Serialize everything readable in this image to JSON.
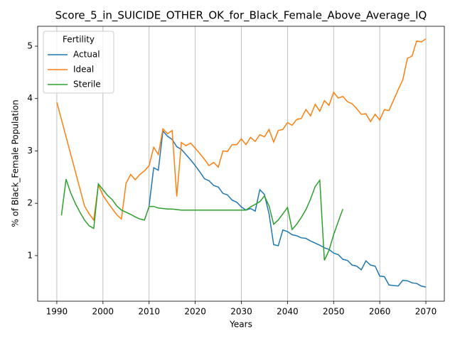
{
  "chart_data": {
    "type": "line",
    "title": "Score_5_in_SUICIDE_OTHER_OK_for_Black_Female_Above_Average_IQ",
    "x_label": "Years",
    "y_label": "% of Black_Female Population",
    "legend_title": "Fertility",
    "legend": "upper left",
    "grid": "x",
    "x": [
      1990,
      1991,
      1992,
      1993,
      1994,
      1995,
      1996,
      1997,
      1998,
      1999,
      2000,
      2001,
      2002,
      2003,
      2004,
      2005,
      2006,
      2007,
      2008,
      2009,
      2010,
      2011,
      2012,
      2013,
      2014,
      2015,
      2016,
      2017,
      2018,
      2019,
      2020,
      2021,
      2022,
      2023,
      2024,
      2025,
      2026,
      2027,
      2028,
      2029,
      2030,
      2031,
      2032,
      2033,
      2034,
      2035,
      2036,
      2037,
      2038,
      2039,
      2040,
      2041,
      2042,
      2043,
      2044,
      2045,
      2046,
      2047,
      2048,
      2049,
      2050,
      2051,
      2052,
      2053,
      2054,
      2055,
      2056,
      2057,
      2058,
      2059,
      2060,
      2061,
      2062,
      2063,
      2064,
      2065,
      2066,
      2067,
      2068,
      2069,
      2070
    ],
    "xlim": [
      1985.85,
      2074.0
    ],
    "xticks": [
      1990,
      2000,
      2010,
      2020,
      2030,
      2040,
      2050,
      2060,
      2070
    ],
    "ylim": [
      0.13,
      5.38
    ],
    "yticks": [
      1,
      2,
      3,
      4,
      5
    ],
    "series": [
      {
        "name": "Actual",
        "color": "#1f77b4",
        "values": [
          null,
          null,
          null,
          null,
          null,
          null,
          null,
          null,
          null,
          null,
          null,
          null,
          null,
          null,
          null,
          null,
          null,
          null,
          null,
          null,
          1.95,
          2.68,
          2.63,
          3.38,
          3.28,
          3.22,
          3.08,
          3.03,
          2.93,
          2.83,
          2.72,
          2.6,
          2.47,
          2.43,
          2.34,
          2.31,
          2.19,
          2.16,
          2.06,
          2.02,
          1.93,
          1.87,
          1.9,
          1.85,
          2.26,
          2.17,
          1.8,
          1.21,
          1.19,
          1.49,
          1.46,
          1.4,
          1.38,
          1.34,
          1.33,
          1.28,
          1.24,
          1.2,
          1.15,
          1.12,
          1.05,
          1.02,
          0.93,
          0.91,
          0.82,
          0.8,
          0.73,
          0.9,
          0.82,
          0.8,
          0.61,
          0.6,
          0.44,
          0.43,
          0.42,
          0.53,
          0.52,
          0.48,
          0.47,
          0.42,
          0.4
        ]
      },
      {
        "name": "Ideal",
        "color": "#ff7f0e",
        "values": [
          3.93,
          3.6,
          3.27,
          2.94,
          2.61,
          2.28,
          1.95,
          1.8,
          1.68,
          2.35,
          2.15,
          2.02,
          1.9,
          1.78,
          1.7,
          2.38,
          2.55,
          2.45,
          2.55,
          2.62,
          2.72,
          3.07,
          2.93,
          3.42,
          3.33,
          3.39,
          2.13,
          3.16,
          3.1,
          3.15,
          3.05,
          2.95,
          2.84,
          2.72,
          2.78,
          2.69,
          3.0,
          2.99,
          3.12,
          3.12,
          3.23,
          3.12,
          3.26,
          3.18,
          3.31,
          3.27,
          3.41,
          3.17,
          3.39,
          3.41,
          3.54,
          3.49,
          3.6,
          3.62,
          3.79,
          3.67,
          3.89,
          3.76,
          3.96,
          3.87,
          4.12,
          4.01,
          4.04,
          3.94,
          3.9,
          3.81,
          3.7,
          3.71,
          3.56,
          3.7,
          3.59,
          3.79,
          3.77,
          3.97,
          4.17,
          4.36,
          4.77,
          4.81,
          5.1,
          5.08,
          5.14
        ]
      },
      {
        "name": "Sterile",
        "color": "#2ca02c",
        "values": [
          null,
          1.77,
          2.46,
          2.2,
          2.0,
          1.83,
          1.68,
          1.57,
          1.52,
          2.37,
          2.26,
          2.15,
          2.07,
          1.95,
          1.87,
          1.83,
          1.79,
          1.74,
          1.7,
          1.68,
          1.94,
          1.94,
          1.91,
          1.9,
          1.89,
          1.89,
          1.88,
          1.87,
          1.87,
          1.87,
          1.87,
          1.87,
          1.87,
          1.87,
          1.87,
          1.87,
          1.87,
          1.87,
          1.87,
          1.87,
          1.87,
          1.87,
          1.93,
          1.98,
          2.03,
          2.14,
          1.95,
          1.6,
          1.68,
          1.8,
          1.92,
          1.5,
          1.6,
          1.73,
          1.88,
          2.08,
          2.32,
          2.44,
          0.91,
          1.1,
          1.4,
          1.65,
          1.89,
          null,
          null,
          null,
          null,
          null,
          null,
          null,
          null,
          null,
          null,
          null,
          null,
          null,
          null,
          null,
          null,
          null,
          null
        ]
      }
    ]
  }
}
